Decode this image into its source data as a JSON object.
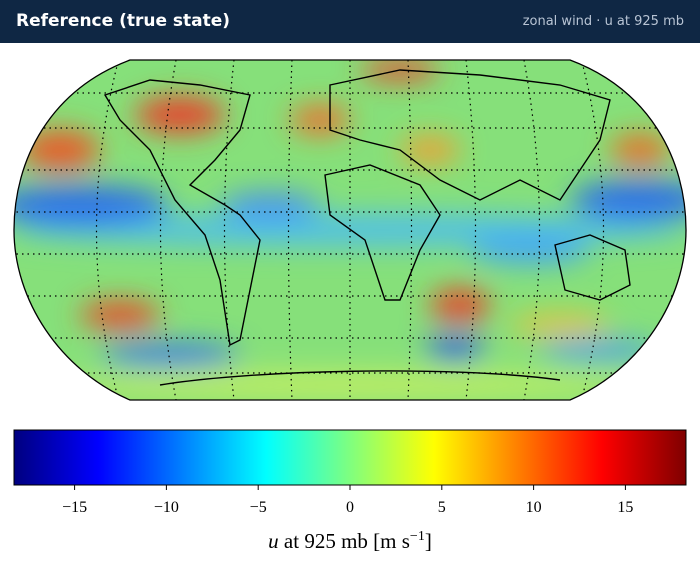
{
  "header": {
    "title": "Reference (true state)",
    "subtitle": "zonal wind · u at 925 mb"
  },
  "colorbar": {
    "lim": [
      -18.3,
      18.3
    ],
    "ticks": [
      {
        "value": -15,
        "label": "−15"
      },
      {
        "value": -10,
        "label": "−10"
      },
      {
        "value": -5,
        "label": "−5"
      },
      0,
      5,
      10,
      15
    ],
    "colors": [
      "#00007f",
      "#0000ff",
      "#007fff",
      "#00ffff",
      "#7fff7f",
      "#ffff00",
      "#ff7f00",
      "#ff0000",
      "#7f0000"
    ],
    "label": {
      "var": "u",
      "text": " at 925 mb [m s",
      "exp": "−1",
      "close": "]"
    }
  }
}
